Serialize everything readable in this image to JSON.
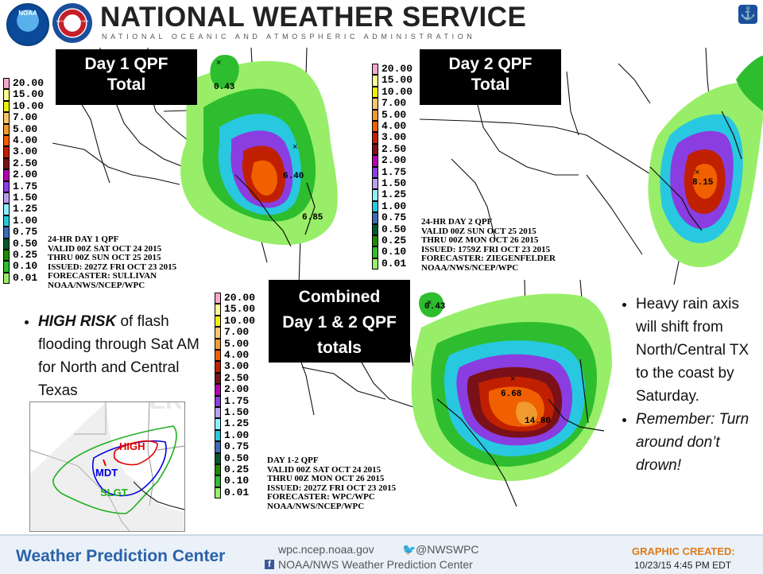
{
  "header": {
    "title": "NATIONAL WEATHER SERVICE",
    "subtitle": "NATIONAL OCEANIC AND ATMOSPHERIC ADMINISTRATION",
    "logo_left_text": "NOAA",
    "logo_right_text": "NATIONAL WEATHER SERVICE"
  },
  "panels": {
    "day1": {
      "title_line1": "Day 1 QPF",
      "title_line2": "Total",
      "max_points": [
        "0.43",
        "6.40",
        "6.85"
      ],
      "meta": [
        "24-HR DAY 1 QPF",
        "VALID 00Z SAT OCT 24 2015",
        "THRU 00Z SUN OCT 25 2015",
        "ISSUED: 2027Z FRI OCT 23 2015",
        "FORECASTER: SULLIVAN",
        "NOAA/NWS/NCEP/WPC"
      ]
    },
    "day2": {
      "title_line1": "Day 2 QPF",
      "title_line2": "Total",
      "max_points": [
        "8.15"
      ],
      "meta": [
        "24-HR DAY 2 QPF",
        "VALID 00Z SUN OCT 25 2015",
        "THRU 00Z MON OCT 26 2015",
        "ISSUED: 1759Z FRI OCT 23 2015",
        "FORECASTER: ZIEGENFELDER",
        "NOAA/NWS/NCEP/WPC"
      ]
    },
    "combined": {
      "title_line1": "Combined",
      "title_line2": "Day 1 & 2 QPF",
      "title_line3": "totals",
      "max_points": [
        "0.43",
        "6.68",
        "14.80"
      ],
      "meta": [
        "DAY 1-2 QPF",
        "VALID 00Z SAT OCT 24 2015",
        "THRU 00Z MON OCT 26 2015",
        "ISSUED: 2027Z FRI OCT 23 2015",
        "FORECASTER: WPC/WPC",
        "NOAA/NWS/NCEP/WPC"
      ]
    }
  },
  "legend": {
    "levels": [
      "20.00",
      "15.00",
      "10.00",
      "7.00",
      "5.00",
      "4.00",
      "3.00",
      "2.50",
      "2.00",
      "1.75",
      "1.50",
      "1.25",
      "1.00",
      "0.75",
      "0.50",
      "0.25",
      "0.10",
      "0.01"
    ],
    "colors": [
      "#f7a8cc",
      "#fdfd96",
      "#f2f200",
      "#f7c66a",
      "#f09a30",
      "#f06000",
      "#c02000",
      "#7a1018",
      "#b600b0",
      "#8a3de0",
      "#b9a0f0",
      "#8cf0ff",
      "#28c8e0",
      "#3c6cb8",
      "#005a2a",
      "#1e8a00",
      "#2ebd2e",
      "#98ee68"
    ]
  },
  "risk_inset": {
    "labels": [
      "HIGH",
      "MDT",
      "SLGT"
    ],
    "colors": {
      "high": "#e00000",
      "mdt": "#0000e0",
      "slgt": "#20b020"
    },
    "watermark": "ERO"
  },
  "text": {
    "left_bullet_bold": "HIGH RISK",
    "left_bullet_rest": " of flash flooding through Sat AM for North and Central Texas",
    "right_bullet1": "Heavy rain axis will shift from North/Central TX to the coast by Saturday.",
    "right_bullet2": "Remember: Turn around don’t drown!"
  },
  "footer": {
    "center_name": "Weather Prediction Center",
    "website": "wpc.ncep.noaa.gov",
    "twitter": "@NWSWPC",
    "facebook": "NOAA/NWS Weather Prediction Center",
    "created_label": "GRAPHIC CREATED:",
    "created_date": "10/23/15 4:45 PM EDT"
  }
}
